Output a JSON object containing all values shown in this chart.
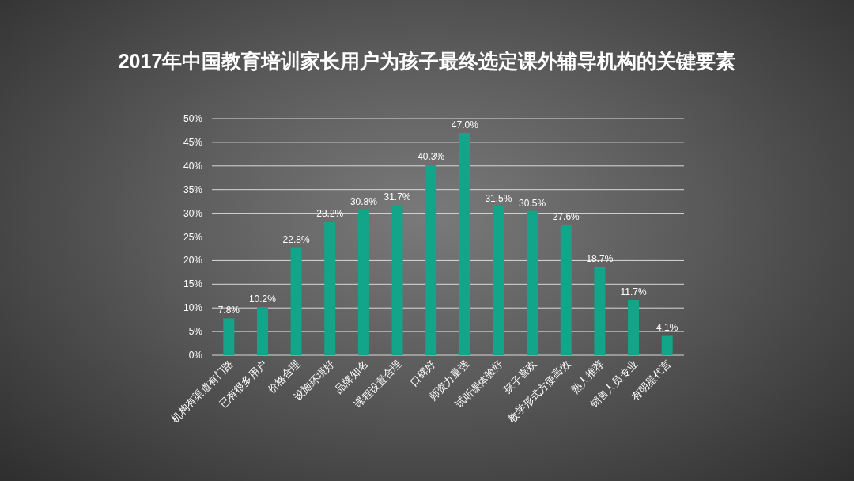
{
  "chart_data": {
    "type": "bar",
    "title": "2017年中国教育培训家长用户为孩子最终选定课外辅导机构的关键要素",
    "categories": [
      "机构有渠道有门路",
      "已有很多用户",
      "价格合理",
      "设施环境好",
      "品牌知名",
      "课程设置合理",
      "口碑好",
      "师资力量强",
      "试听课体验好",
      "孩子喜欢",
      "教学形式方便高效",
      "熟人推荐",
      "销售人员专业",
      "有明星代言"
    ],
    "values": [
      7.8,
      10.2,
      22.8,
      28.2,
      30.8,
      31.7,
      40.3,
      47.0,
      31.5,
      30.5,
      27.6,
      18.7,
      11.7,
      4.1
    ],
    "value_labels": [
      "7.8%",
      "10.2%",
      "22.8%",
      "28.2%",
      "30.8%",
      "31.7%",
      "40.3%",
      "47.0%",
      "31.5%",
      "30.5%",
      "27.6%",
      "18.7%",
      "11.7%",
      "4.1%"
    ],
    "color": "#12a58a",
    "ylim": [
      0,
      50
    ],
    "yticks": [
      {
        "value": 0,
        "label": "0%"
      },
      {
        "value": 5,
        "label": "5%"
      },
      {
        "value": 10,
        "label": "10%"
      },
      {
        "value": 15,
        "label": "15%"
      },
      {
        "value": 20,
        "label": "20%"
      },
      {
        "value": 25,
        "label": "25%"
      },
      {
        "value": 30,
        "label": "30%"
      },
      {
        "value": 35,
        "label": "35%"
      },
      {
        "value": 40,
        "label": "40%"
      },
      {
        "value": 45,
        "label": "45%"
      },
      {
        "value": 50,
        "label": "50%"
      }
    ],
    "grid": "y"
  }
}
